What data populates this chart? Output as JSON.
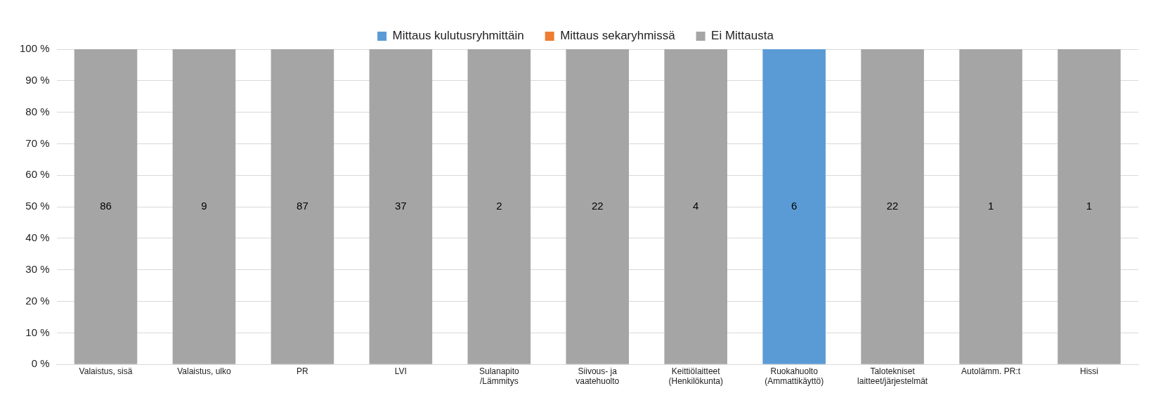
{
  "chart_data": {
    "type": "bar",
    "stacked": true,
    "categories": [
      "Valaistus, sisä",
      "Valaistus, ulko",
      "PR",
      "LVI",
      "Sulanapito /Lämmitys",
      "Siivous- ja vaatehuolto",
      "Keittiölaitteet (Henkilökunta)",
      "Ruokahuolto (Ammattikäyttö)",
      "Talotekniset laitteet/järjestelmät",
      "Autolämm. PR:t",
      "Hissi"
    ],
    "series": [
      {
        "name": "Mittaus kulutusryhmittäin",
        "color": "#5b9bd5",
        "values": [
          0,
          0,
          0,
          0,
          0,
          0,
          0,
          100,
          0,
          0,
          0
        ]
      },
      {
        "name": "Mittaus sekaryhmissä",
        "color": "#ed7d31",
        "values": [
          0,
          0,
          0,
          0,
          0,
          0,
          0,
          0,
          0,
          0,
          0
        ]
      },
      {
        "name": "Ei Mittausta",
        "color": "#a5a5a5",
        "values": [
          100,
          100,
          100,
          100,
          100,
          100,
          100,
          0,
          100,
          100,
          100
        ]
      }
    ],
    "annotations": [
      "86",
      "9",
      "87",
      "37",
      "2",
      "22",
      "4",
      "6",
      "22",
      "1",
      "1"
    ],
    "ylim": [
      0,
      100
    ],
    "yticks": [
      {
        "value": 0,
        "label": "0 %"
      },
      {
        "value": 10,
        "label": "10 %"
      },
      {
        "value": 20,
        "label": "20 %"
      },
      {
        "value": 30,
        "label": "30 %"
      },
      {
        "value": 40,
        "label": "40 %"
      },
      {
        "value": 50,
        "label": "50 %"
      },
      {
        "value": 60,
        "label": "60 %"
      },
      {
        "value": 70,
        "label": "70 %"
      },
      {
        "value": 80,
        "label": "80 %"
      },
      {
        "value": 90,
        "label": "90 %"
      },
      {
        "value": 100,
        "label": "100 %"
      }
    ],
    "grid": "y",
    "legend": "top"
  }
}
